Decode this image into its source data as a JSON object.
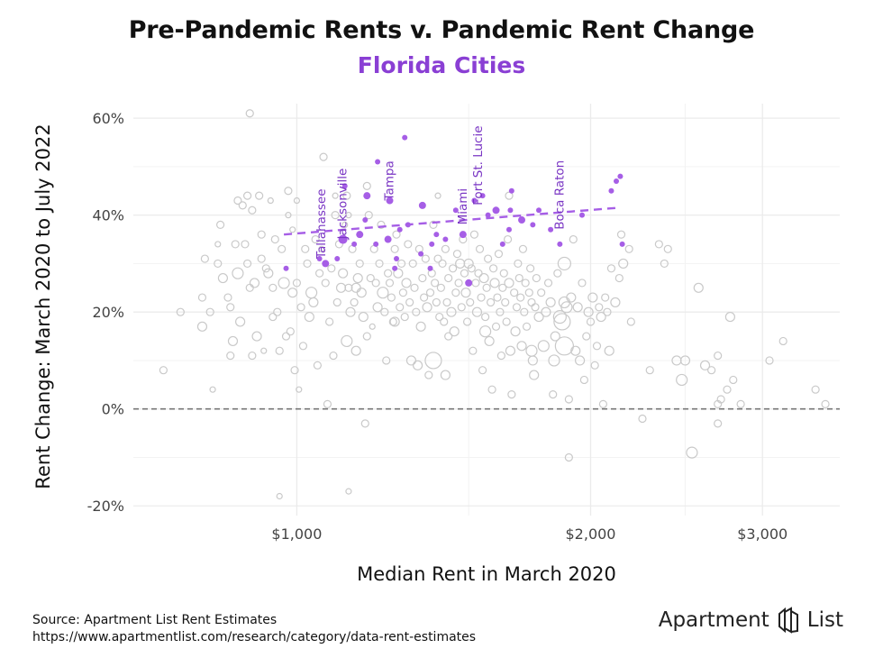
{
  "header": {
    "title": "Pre-Pandemic Rents v. Pandemic Rent Change",
    "subtitle": "Florida Cities"
  },
  "footer": {
    "source": "Source: Apartment List Rent Estimates",
    "url": "https://www.apartmentlist.com/research/category/data-rent-estimates",
    "brand_word_1": "Apartment",
    "brand_word_2": "List",
    "brand_icon": "apartment-list-logo-icon"
  },
  "colors": {
    "highlight": "#a65ee6",
    "highlight_label": "#7a36c4",
    "other": "#c9c9c9",
    "zero_line": "#777777",
    "grid": "#ebebeb"
  },
  "chart_data": {
    "type": "scatter",
    "xlabel": "Median Rent in March 2020",
    "ylabel": "Rent Change: March 2020 to July 2022",
    "x_scale": "log",
    "xlim": [
      680,
      3600
    ],
    "ylim": [
      -22,
      63
    ],
    "x_ticks": [
      {
        "value": 1000,
        "label": "$1,000"
      },
      {
        "value": 2000,
        "label": "$2,000"
      },
      {
        "value": 3000,
        "label": "$3,000"
      }
    ],
    "y_ticks": [
      {
        "value": -20,
        "label": "-20%"
      },
      {
        "value": 0,
        "label": "0%"
      },
      {
        "value": 20,
        "label": "20%"
      },
      {
        "value": 40,
        "label": "40%"
      },
      {
        "value": 60,
        "label": "60%"
      }
    ],
    "grid": true,
    "zero_reference_line": 0,
    "trend_line": {
      "x": [
        970,
        2130
      ],
      "y": [
        36.0,
        41.5
      ]
    },
    "labels": [
      {
        "text": "Tallahassee",
        "x": 1060,
        "y": 31
      },
      {
        "text": "Jacksonville",
        "x": 1115,
        "y": 35
      },
      {
        "text": "Tampa",
        "x": 1245,
        "y": 43
      },
      {
        "text": "Miami",
        "x": 1480,
        "y": 38
      },
      {
        "text": "Fort St. Lucie",
        "x": 1535,
        "y": 42
      },
      {
        "text": "Boca Raton",
        "x": 1860,
        "y": 37
      }
    ],
    "highlighted": [
      [
        975,
        29,
        3
      ],
      [
        1055,
        31,
        3
      ],
      [
        1070,
        30,
        4
      ],
      [
        1100,
        31,
        3
      ],
      [
        1115,
        35,
        5
      ],
      [
        1120,
        46,
        3
      ],
      [
        1145,
        34,
        3
      ],
      [
        1160,
        36,
        4
      ],
      [
        1175,
        39,
        3
      ],
      [
        1180,
        44,
        4
      ],
      [
        1205,
        34,
        3
      ],
      [
        1210,
        51,
        3
      ],
      [
        1240,
        35,
        4
      ],
      [
        1245,
        43,
        4
      ],
      [
        1260,
        29,
        3
      ],
      [
        1265,
        31,
        3
      ],
      [
        1275,
        37,
        3
      ],
      [
        1290,
        56,
        3
      ],
      [
        1300,
        38,
        3
      ],
      [
        1340,
        32,
        3
      ],
      [
        1345,
        42,
        4
      ],
      [
        1370,
        29,
        3
      ],
      [
        1375,
        34,
        3
      ],
      [
        1390,
        36,
        3
      ],
      [
        1420,
        35,
        3
      ],
      [
        1455,
        41,
        3
      ],
      [
        1480,
        36,
        4
      ],
      [
        1500,
        26,
        4
      ],
      [
        1520,
        43,
        3
      ],
      [
        1550,
        44,
        3
      ],
      [
        1570,
        40,
        3
      ],
      [
        1600,
        41,
        4
      ],
      [
        1625,
        34,
        3
      ],
      [
        1650,
        37,
        3
      ],
      [
        1655,
        41,
        3
      ],
      [
        1660,
        45,
        3
      ],
      [
        1700,
        39,
        4
      ],
      [
        1745,
        38,
        3
      ],
      [
        1770,
        41,
        3
      ],
      [
        1820,
        37,
        3
      ],
      [
        1860,
        34,
        3
      ],
      [
        1960,
        40,
        3
      ],
      [
        2100,
        45,
        3
      ],
      [
        2125,
        47,
        3
      ],
      [
        2145,
        48,
        3
      ],
      [
        2155,
        34,
        3
      ]
    ],
    "others": [
      [
        730,
        8,
        4
      ],
      [
        760,
        20,
        4
      ],
      [
        800,
        17,
        5
      ],
      [
        800,
        23,
        4
      ],
      [
        805,
        31,
        4
      ],
      [
        815,
        20,
        4
      ],
      [
        820,
        4,
        3
      ],
      [
        830,
        34,
        3
      ],
      [
        830,
        30,
        4
      ],
      [
        835,
        38,
        4
      ],
      [
        840,
        27,
        5
      ],
      [
        850,
        23,
        4
      ],
      [
        855,
        21,
        4
      ],
      [
        855,
        11,
        4
      ],
      [
        860,
        14,
        5
      ],
      [
        865,
        34,
        4
      ],
      [
        870,
        28,
        6
      ],
      [
        870,
        43,
        4
      ],
      [
        875,
        18,
        5
      ],
      [
        880,
        42,
        4
      ],
      [
        885,
        34,
        4
      ],
      [
        890,
        30,
        4
      ],
      [
        890,
        44,
        4
      ],
      [
        895,
        25,
        4
      ],
      [
        895,
        61,
        4
      ],
      [
        900,
        11,
        4
      ],
      [
        900,
        41,
        4
      ],
      [
        905,
        26,
        5
      ],
      [
        910,
        15,
        5
      ],
      [
        915,
        44,
        4
      ],
      [
        920,
        31,
        4
      ],
      [
        920,
        36,
        4
      ],
      [
        925,
        12,
        3
      ],
      [
        930,
        29,
        4
      ],
      [
        935,
        28,
        5
      ],
      [
        940,
        43,
        3
      ],
      [
        945,
        19,
        4
      ],
      [
        945,
        25,
        4
      ],
      [
        950,
        35,
        4
      ],
      [
        955,
        20,
        4
      ],
      [
        960,
        12,
        4
      ],
      [
        960,
        -18,
        3
      ],
      [
        965,
        33,
        4
      ],
      [
        970,
        26,
        6
      ],
      [
        975,
        15,
        4
      ],
      [
        980,
        45,
        4
      ],
      [
        985,
        16,
        4
      ],
      [
        990,
        37,
        3
      ],
      [
        990,
        24,
        5
      ],
      [
        995,
        8,
        4
      ],
      [
        1000,
        26,
        4
      ],
      [
        1005,
        4,
        3
      ],
      [
        1010,
        21,
        4
      ],
      [
        1015,
        13,
        4
      ],
      [
        1020,
        33,
        4
      ],
      [
        1025,
        30,
        4
      ],
      [
        1030,
        19,
        5
      ],
      [
        1035,
        24,
        6
      ],
      [
        1040,
        22,
        5
      ],
      [
        1045,
        35,
        4
      ],
      [
        1050,
        9,
        4
      ],
      [
        1055,
        28,
        4
      ],
      [
        1060,
        33,
        3
      ],
      [
        1065,
        52,
        4
      ],
      [
        1070,
        26,
        4
      ],
      [
        1075,
        1,
        4
      ],
      [
        1080,
        18,
        4
      ],
      [
        1085,
        29,
        4
      ],
      [
        1090,
        11,
        4
      ],
      [
        1095,
        40,
        4
      ],
      [
        1100,
        22,
        4
      ],
      [
        1105,
        34,
        4
      ],
      [
        1110,
        25,
        5
      ],
      [
        1115,
        28,
        5
      ],
      [
        1120,
        38,
        3
      ],
      [
        1125,
        14,
        6
      ],
      [
        1130,
        25,
        4
      ],
      [
        1130,
        -17,
        3
      ],
      [
        1135,
        20,
        5
      ],
      [
        1140,
        33,
        4
      ],
      [
        1145,
        22,
        4
      ],
      [
        1150,
        12,
        5
      ],
      [
        1155,
        27,
        5
      ],
      [
        1160,
        30,
        4
      ],
      [
        1165,
        24,
        5
      ],
      [
        1170,
        19,
        5
      ],
      [
        1175,
        -3,
        4
      ],
      [
        1180,
        15,
        4
      ],
      [
        1185,
        40,
        4
      ],
      [
        1190,
        27,
        4
      ],
      [
        1195,
        17,
        3
      ],
      [
        1200,
        33,
        4
      ],
      [
        1205,
        26,
        4
      ],
      [
        1210,
        21,
        5
      ],
      [
        1215,
        30,
        4
      ],
      [
        1220,
        38,
        4
      ],
      [
        1225,
        24,
        6
      ],
      [
        1230,
        20,
        4
      ],
      [
        1235,
        10,
        4
      ],
      [
        1240,
        28,
        4
      ],
      [
        1245,
        26,
        4
      ],
      [
        1250,
        23,
        4
      ],
      [
        1255,
        18,
        4
      ],
      [
        1260,
        33,
        4
      ],
      [
        1265,
        36,
        4
      ],
      [
        1270,
        28,
        5
      ],
      [
        1275,
        21,
        4
      ],
      [
        1280,
        30,
        4
      ],
      [
        1285,
        24,
        4
      ],
      [
        1290,
        19,
        4
      ],
      [
        1295,
        26,
        5
      ],
      [
        1300,
        34,
        4
      ],
      [
        1305,
        22,
        4
      ],
      [
        1310,
        10,
        5
      ],
      [
        1315,
        30,
        4
      ],
      [
        1320,
        25,
        4
      ],
      [
        1325,
        20,
        4
      ],
      [
        1330,
        9,
        5
      ],
      [
        1335,
        33,
        4
      ],
      [
        1340,
        17,
        5
      ],
      [
        1345,
        27,
        4
      ],
      [
        1350,
        23,
        4
      ],
      [
        1355,
        31,
        4
      ],
      [
        1360,
        21,
        5
      ],
      [
        1365,
        7,
        4
      ],
      [
        1370,
        24,
        4
      ],
      [
        1375,
        28,
        4
      ],
      [
        1380,
        38,
        4
      ],
      [
        1385,
        26,
        4
      ],
      [
        1390,
        22,
        4
      ],
      [
        1395,
        31,
        4
      ],
      [
        1400,
        19,
        4
      ],
      [
        1405,
        25,
        4
      ],
      [
        1410,
        30,
        4
      ],
      [
        1415,
        18,
        4
      ],
      [
        1420,
        33,
        4
      ],
      [
        1425,
        22,
        4
      ],
      [
        1430,
        27,
        4
      ],
      [
        1440,
        20,
        5
      ],
      [
        1445,
        29,
        4
      ],
      [
        1450,
        16,
        5
      ],
      [
        1455,
        24,
        4
      ],
      [
        1460,
        32,
        4
      ],
      [
        1465,
        26,
        4
      ],
      [
        1470,
        30,
        5
      ],
      [
        1475,
        21,
        4
      ],
      [
        1480,
        35,
        4
      ],
      [
        1485,
        28,
        4
      ],
      [
        1490,
        24,
        5
      ],
      [
        1495,
        18,
        4
      ],
      [
        1500,
        30,
        5
      ],
      [
        1505,
        22,
        4
      ],
      [
        1510,
        29,
        4
      ],
      [
        1515,
        12,
        4
      ],
      [
        1520,
        36,
        4
      ],
      [
        1525,
        26,
        4
      ],
      [
        1530,
        20,
        5
      ],
      [
        1535,
        28,
        4
      ],
      [
        1540,
        33,
        4
      ],
      [
        1545,
        23,
        4
      ],
      [
        1550,
        8,
        4
      ],
      [
        1555,
        27,
        5
      ],
      [
        1560,
        19,
        4
      ],
      [
        1565,
        25,
        4
      ],
      [
        1570,
        31,
        4
      ],
      [
        1575,
        14,
        5
      ],
      [
        1580,
        22,
        4
      ],
      [
        1585,
        4,
        4
      ],
      [
        1590,
        29,
        4
      ],
      [
        1595,
        26,
        5
      ],
      [
        1600,
        17,
        4
      ],
      [
        1605,
        23,
        4
      ],
      [
        1610,
        32,
        4
      ],
      [
        1615,
        20,
        4
      ],
      [
        1620,
        11,
        4
      ],
      [
        1625,
        25,
        4
      ],
      [
        1630,
        28,
        4
      ],
      [
        1635,
        22,
        4
      ],
      [
        1640,
        18,
        4
      ],
      [
        1645,
        35,
        4
      ],
      [
        1650,
        26,
        5
      ],
      [
        1655,
        12,
        5
      ],
      [
        1660,
        3,
        4
      ],
      [
        1670,
        24,
        4
      ],
      [
        1675,
        16,
        5
      ],
      [
        1680,
        21,
        4
      ],
      [
        1685,
        30,
        4
      ],
      [
        1690,
        27,
        4
      ],
      [
        1695,
        23,
        4
      ],
      [
        1700,
        13,
        5
      ],
      [
        1705,
        33,
        4
      ],
      [
        1710,
        20,
        4
      ],
      [
        1715,
        26,
        4
      ],
      [
        1720,
        17,
        4
      ],
      [
        1730,
        24,
        4
      ],
      [
        1735,
        29,
        4
      ],
      [
        1740,
        22,
        4
      ],
      [
        1745,
        10,
        5
      ],
      [
        1750,
        7,
        5
      ],
      [
        1755,
        21,
        4
      ],
      [
        1760,
        27,
        4
      ],
      [
        1770,
        19,
        5
      ],
      [
        1780,
        24,
        4
      ],
      [
        1790,
        13,
        6
      ],
      [
        1800,
        20,
        5
      ],
      [
        1810,
        26,
        4
      ],
      [
        1820,
        22,
        5
      ],
      [
        1830,
        3,
        4
      ],
      [
        1840,
        15,
        5
      ],
      [
        1850,
        28,
        4
      ],
      [
        1860,
        19,
        7
      ],
      [
        1870,
        18,
        9
      ],
      [
        1880,
        30,
        7
      ],
      [
        1890,
        21,
        6
      ],
      [
        1900,
        2,
        4
      ],
      [
        1900,
        -10,
        4
      ],
      [
        1910,
        23,
        5
      ],
      [
        1920,
        35,
        4
      ],
      [
        1930,
        12,
        5
      ],
      [
        1940,
        21,
        5
      ],
      [
        1950,
        10,
        5
      ],
      [
        1960,
        26,
        4
      ],
      [
        1970,
        6,
        4
      ],
      [
        1980,
        15,
        4
      ],
      [
        1990,
        20,
        5
      ],
      [
        2000,
        18,
        4
      ],
      [
        2010,
        23,
        5
      ],
      [
        2020,
        9,
        4
      ],
      [
        2030,
        13,
        4
      ],
      [
        2040,
        21,
        4
      ],
      [
        2050,
        19,
        5
      ],
      [
        2060,
        1,
        4
      ],
      [
        2070,
        23,
        4
      ],
      [
        2080,
        20,
        4
      ],
      [
        2090,
        12,
        5
      ],
      [
        2100,
        29,
        4
      ],
      [
        2120,
        22,
        5
      ],
      [
        2140,
        27,
        4
      ],
      [
        2150,
        36,
        4
      ],
      [
        2160,
        30,
        5
      ],
      [
        2190,
        33,
        4
      ],
      [
        2200,
        18,
        4
      ],
      [
        2260,
        -2,
        4
      ],
      [
        2300,
        8,
        4
      ],
      [
        2350,
        34,
        4
      ],
      [
        2380,
        30,
        4
      ],
      [
        2400,
        33,
        4
      ],
      [
        2450,
        10,
        5
      ],
      [
        2480,
        6,
        6
      ],
      [
        2500,
        10,
        5
      ],
      [
        2540,
        -9,
        6
      ],
      [
        2580,
        25,
        5
      ],
      [
        2620,
        9,
        5
      ],
      [
        2660,
        8,
        4
      ],
      [
        2700,
        11,
        4
      ],
      [
        2700,
        -3,
        4
      ],
      [
        2720,
        2,
        4
      ],
      [
        2760,
        4,
        4
      ],
      [
        2780,
        19,
        5
      ],
      [
        2800,
        6,
        4
      ],
      [
        2850,
        1,
        4
      ],
      [
        3050,
        10,
        4
      ],
      [
        3150,
        14,
        4
      ],
      [
        3400,
        4,
        4
      ],
      [
        3480,
        1,
        4
      ],
      [
        2700,
        1,
        4
      ],
      [
        1125,
        44,
        4
      ],
      [
        1180,
        46,
        4
      ],
      [
        1095,
        44,
        3
      ],
      [
        1000,
        43,
        3
      ],
      [
        980,
        40,
        3
      ],
      [
        1130,
        40,
        3
      ],
      [
        1395,
        44,
        3
      ],
      [
        1650,
        44,
        4
      ],
      [
        1150,
        25,
        5
      ],
      [
        1260,
        18,
        5
      ],
      [
        1430,
        15,
        4
      ],
      [
        1560,
        16,
        6
      ],
      [
        1740,
        12,
        6
      ],
      [
        1835,
        10,
        6
      ],
      [
        1880,
        13,
        10
      ],
      [
        1880,
        22,
        6
      ],
      [
        1380,
        10,
        9
      ],
      [
        1420,
        7,
        5
      ]
    ]
  }
}
